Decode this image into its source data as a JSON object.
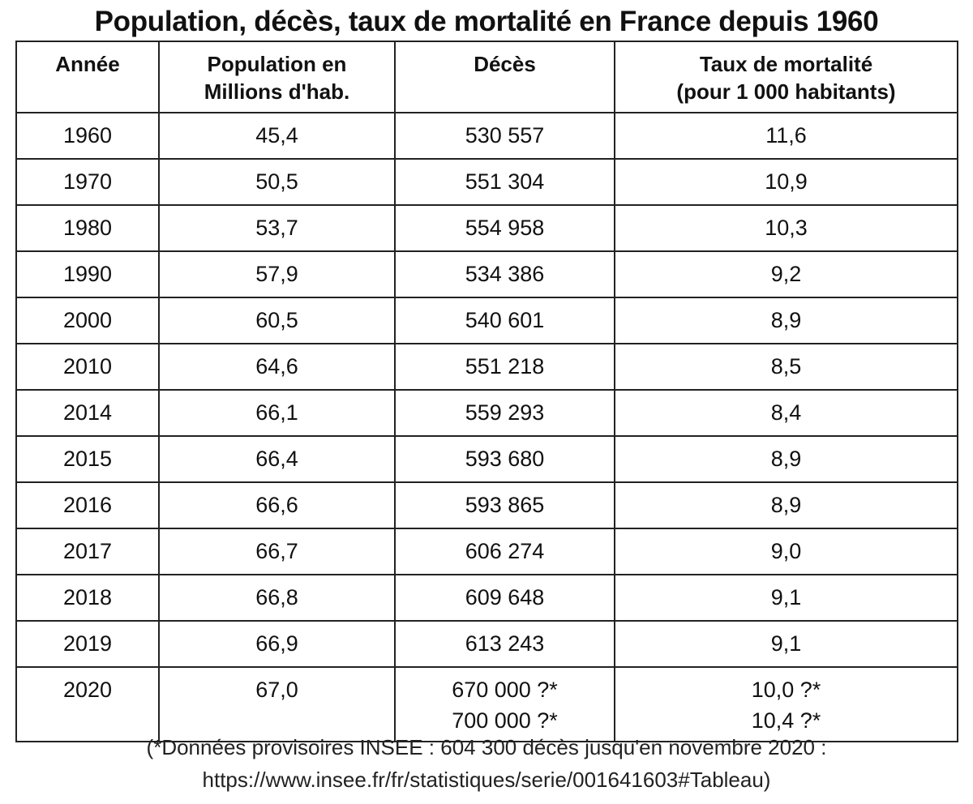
{
  "title": "Population, décès, taux de mortalité en France depuis 1960",
  "headers": {
    "annee": "Année",
    "population_1": "Population en",
    "population_2": "Millions d'hab.",
    "deces": "Décès",
    "taux_1": "Taux de mortalité",
    "taux_2": "(pour 1 000 habitants)"
  },
  "rows": [
    {
      "annee": "1960",
      "population": "45,4",
      "deces": "530 557",
      "taux": "11,6"
    },
    {
      "annee": "1970",
      "population": "50,5",
      "deces": "551 304",
      "taux": "10,9"
    },
    {
      "annee": "1980",
      "population": "53,7",
      "deces": "554 958",
      "taux": "10,3"
    },
    {
      "annee": "1990",
      "population": "57,9",
      "deces": "534 386",
      "taux": "9,2"
    },
    {
      "annee": "2000",
      "population": "60,5",
      "deces": "540 601",
      "taux": "8,9"
    },
    {
      "annee": "2010",
      "population": "64,6",
      "deces": "551 218",
      "taux": "8,5"
    },
    {
      "annee": "2014",
      "population": "66,1",
      "deces": "559 293",
      "taux": "8,4"
    },
    {
      "annee": "2015",
      "population": "66,4",
      "deces": "593 680",
      "taux": "8,9"
    },
    {
      "annee": "2016",
      "population": "66,6",
      "deces": "593 865",
      "taux": "8,9"
    },
    {
      "annee": "2017",
      "population": "66,7",
      "deces": "606 274",
      "taux": "9,0"
    },
    {
      "annee": "2018",
      "population": "66,8",
      "deces": "609 648",
      "taux": "9,1"
    },
    {
      "annee": "2019",
      "population": "66,9",
      "deces": "613 243",
      "taux": "9,1"
    }
  ],
  "last_row": {
    "annee": "2020",
    "population": "67,0",
    "deces_1": "670 000 ?*",
    "deces_2": "700 000 ?*",
    "taux_1": "10,0 ?*",
    "taux_2": "10,4 ?*"
  },
  "footnote": {
    "line1": "(*Données provisoires INSEE : 604 300 décès jusqu'en novembre 2020 :",
    "line2": "https://www.insee.fr/fr/statistiques/serie/001641603#Tableau)"
  },
  "chart_data": {
    "type": "table",
    "title": "Population, décès, taux de mortalité en France depuis 1960",
    "columns": [
      "Année",
      "Population en Millions d'hab.",
      "Décès",
      "Taux de mortalité (pour 1 000 habitants)"
    ],
    "rows": [
      [
        "1960",
        45.4,
        530557,
        11.6
      ],
      [
        "1970",
        50.5,
        551304,
        10.9
      ],
      [
        "1980",
        53.7,
        554958,
        10.3
      ],
      [
        "1990",
        57.9,
        534386,
        9.2
      ],
      [
        "2000",
        60.5,
        540601,
        8.9
      ],
      [
        "2010",
        64.6,
        551218,
        8.5
      ],
      [
        "2014",
        66.1,
        559293,
        8.4
      ],
      [
        "2015",
        66.4,
        593680,
        8.9
      ],
      [
        "2016",
        66.6,
        593865,
        8.9
      ],
      [
        "2017",
        66.7,
        606274,
        9.0
      ],
      [
        "2018",
        66.8,
        609648,
        9.1
      ],
      [
        "2019",
        66.9,
        613243,
        9.1
      ],
      [
        "2020",
        67.0,
        "670 000 ?* / 700 000 ?*",
        "10,0 ?* / 10,4 ?*"
      ]
    ]
  }
}
